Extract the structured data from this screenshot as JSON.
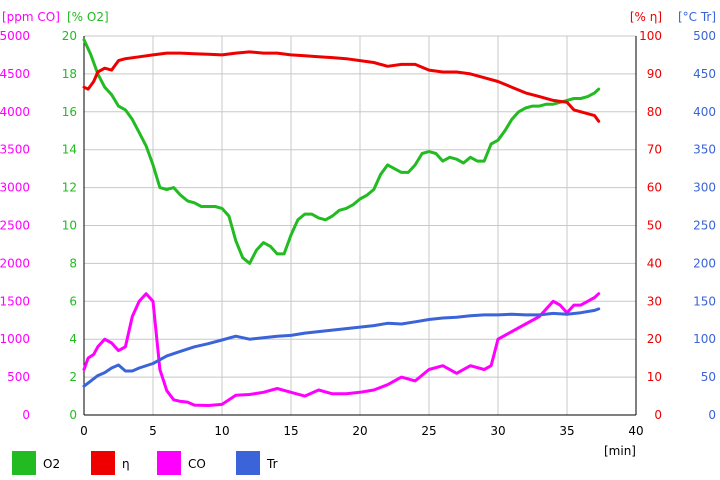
{
  "colors": {
    "co": "#ff00ff",
    "o2": "#22bb22",
    "eta": "#ee0000",
    "tr": "#3a64d8",
    "grid": "#c8c8c8",
    "axis": "#000000"
  },
  "chart_data": {
    "type": "line",
    "xlabel": "[min]",
    "xlim": [
      0,
      40
    ],
    "x_ticks": [
      "0",
      "5",
      "10",
      "15",
      "20",
      "25",
      "30",
      "35",
      "40"
    ],
    "grid": true,
    "legend_position": "bottom",
    "axes": [
      {
        "id": "co",
        "label": "[ppm CO]",
        "side": "left",
        "range": [
          0,
          5000
        ],
        "ticks": [
          "0",
          "500",
          "1000",
          "1500",
          "2000",
          "2500",
          "3000",
          "3500",
          "4000",
          "4500",
          "5000"
        ]
      },
      {
        "id": "o2",
        "label": "[% O2]",
        "side": "left",
        "range": [
          0,
          20
        ],
        "ticks": [
          "0",
          "2",
          "4",
          "6",
          "8",
          "10",
          "12",
          "14",
          "16",
          "18",
          "20"
        ]
      },
      {
        "id": "eta",
        "label": "[% η]",
        "side": "right",
        "range": [
          0,
          100
        ],
        "ticks": [
          "0",
          "10",
          "20",
          "30",
          "40",
          "50",
          "60",
          "70",
          "80",
          "90",
          "100"
        ]
      },
      {
        "id": "tr",
        "label": "[°C Tr]",
        "side": "right",
        "range": [
          0,
          500
        ],
        "ticks": [
          "0",
          "50",
          "100",
          "150",
          "200",
          "250",
          "300",
          "350",
          "400",
          "450",
          "500"
        ]
      }
    ],
    "series": [
      {
        "name": "O2",
        "axis": "o2",
        "x": [
          0,
          0.5,
          1,
          1.5,
          2,
          2.5,
          3,
          3.5,
          4,
          4.5,
          5,
          5.5,
          6,
          6.5,
          7,
          7.5,
          8,
          8.5,
          9,
          9.5,
          10,
          10.5,
          11,
          11.5,
          12,
          12.5,
          13,
          13.5,
          14,
          14.5,
          15,
          15.5,
          16,
          16.5,
          17,
          17.5,
          18,
          18.5,
          19,
          19.5,
          20,
          20.5,
          21,
          21.5,
          22,
          22.5,
          23,
          23.5,
          24,
          24.5,
          25,
          25.5,
          26,
          26.5,
          27,
          27.5,
          28,
          28.5,
          29,
          29.5,
          30,
          30.5,
          31,
          31.5,
          32,
          32.5,
          33,
          33.5,
          34,
          34.5,
          35,
          35.5,
          36,
          36.5,
          37,
          37.3
        ],
        "values": [
          19.8,
          19.0,
          18.0,
          17.3,
          16.9,
          16.3,
          16.1,
          15.6,
          14.9,
          14.2,
          13.2,
          12.0,
          11.9,
          12.0,
          11.6,
          11.3,
          11.2,
          11.0,
          11.0,
          11.0,
          10.9,
          10.5,
          9.2,
          8.3,
          8.0,
          8.7,
          9.1,
          8.9,
          8.5,
          8.5,
          9.5,
          10.3,
          10.6,
          10.6,
          10.4,
          10.3,
          10.5,
          10.8,
          10.9,
          11.1,
          11.4,
          11.6,
          11.9,
          12.7,
          13.2,
          13.0,
          12.8,
          12.8,
          13.2,
          13.8,
          13.9,
          13.8,
          13.4,
          13.6,
          13.5,
          13.3,
          13.6,
          13.4,
          13.4,
          14.3,
          14.5,
          15.0,
          15.6,
          16.0,
          16.2,
          16.3,
          16.3,
          16.4,
          16.4,
          16.5,
          16.6,
          16.7,
          16.7,
          16.8,
          17.0,
          17.2
        ]
      },
      {
        "name": "η",
        "axis": "eta",
        "x": [
          0,
          0.3,
          0.7,
          1,
          1.5,
          2,
          2.5,
          3,
          4,
          5,
          6,
          7,
          8,
          9,
          10,
          11,
          12,
          13,
          14,
          15,
          16,
          17,
          18,
          19,
          20,
          21,
          22,
          23,
          24,
          25,
          26,
          27,
          28,
          29,
          30,
          31,
          32,
          33,
          34,
          35,
          35.5,
          36,
          36.5,
          37,
          37.3
        ],
        "values": [
          86.5,
          86.0,
          88.0,
          90.5,
          91.5,
          91.0,
          93.5,
          94.0,
          94.5,
          95.0,
          95.5,
          95.5,
          95.3,
          95.2,
          95.0,
          95.5,
          95.8,
          95.5,
          95.5,
          95.0,
          94.8,
          94.5,
          94.3,
          94.0,
          93.5,
          93.0,
          92.0,
          92.5,
          92.5,
          91.0,
          90.5,
          90.5,
          90.0,
          89.0,
          88.0,
          86.5,
          85.0,
          84.0,
          83.0,
          82.5,
          80.5,
          80.0,
          79.5,
          79.0,
          77.5
        ]
      },
      {
        "name": "CO",
        "axis": "co",
        "x": [
          0,
          0.3,
          0.7,
          1,
          1.5,
          2,
          2.5,
          3,
          3.5,
          4,
          4.5,
          5,
          5.5,
          6,
          6.5,
          7,
          7.5,
          8,
          9,
          10,
          11,
          12,
          13,
          14,
          15,
          16,
          17,
          18,
          19,
          20,
          21,
          22,
          23,
          24,
          25,
          26,
          27,
          28,
          29,
          29.5,
          30,
          31,
          32,
          33,
          34,
          34.5,
          35,
          35.5,
          36,
          36.5,
          37,
          37.3
        ],
        "values": [
          600,
          750,
          800,
          900,
          1000,
          950,
          850,
          900,
          1300,
          1500,
          1600,
          1500,
          600,
          320,
          200,
          180,
          170,
          130,
          125,
          140,
          260,
          270,
          300,
          350,
          300,
          250,
          330,
          280,
          280,
          300,
          330,
          400,
          500,
          450,
          600,
          650,
          550,
          650,
          600,
          650,
          1000,
          1100,
          1200,
          1300,
          1500,
          1450,
          1350,
          1450,
          1450,
          1500,
          1550,
          1600
        ]
      },
      {
        "name": "Tr",
        "axis": "tr",
        "x": [
          0,
          0.5,
          1,
          1.5,
          2,
          2.5,
          3,
          3.5,
          4,
          5,
          6,
          7,
          8,
          9,
          10,
          11,
          12,
          13,
          14,
          15,
          16,
          17,
          18,
          19,
          20,
          21,
          22,
          23,
          24,
          25,
          26,
          27,
          28,
          29,
          30,
          31,
          32,
          33,
          34,
          35,
          36,
          37,
          37.3
        ],
        "values": [
          38,
          45,
          52,
          56,
          62,
          66,
          58,
          58,
          62,
          68,
          78,
          84,
          90,
          94,
          99,
          104,
          100,
          102,
          104,
          105,
          108,
          110,
          112,
          114,
          116,
          118,
          121,
          120,
          123,
          126,
          128,
          129,
          131,
          132,
          132,
          133,
          132,
          132,
          134,
          133,
          135,
          138,
          140
        ]
      }
    ]
  }
}
